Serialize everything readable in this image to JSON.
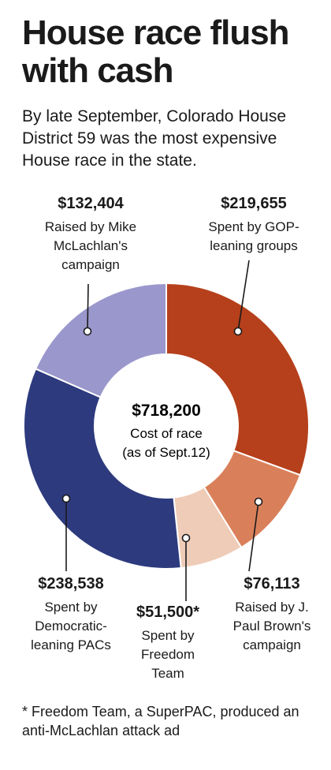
{
  "header": {
    "title": "House race flush with cash",
    "subtitle": "By late September, Colorado House District 59 was the most expensive House race in the state."
  },
  "chart_data": {
    "type": "donut",
    "title": "House race flush with cash",
    "center": {
      "value": "$718,200",
      "line1": "Cost of race",
      "line2": "(as of Sept.12)"
    },
    "slices": [
      {
        "id": "gop",
        "value": 219655,
        "amount_label": "$219,655",
        "description": "Spent by GOP-\nleaning groups",
        "color": "#b5401b"
      },
      {
        "id": "brown",
        "value": 76113,
        "amount_label": "$76,113",
        "description": "Raised by J.\nPaul Brown's\ncampaign",
        "color": "#d9805a"
      },
      {
        "id": "freedom",
        "value": 51500,
        "amount_label": "$51,500*",
        "description": "Spent by\nFreedom\nTeam",
        "color": "#efccb8"
      },
      {
        "id": "dem",
        "value": 238538,
        "amount_label": "$238,538",
        "description": "Spent by\nDemocratic-\nleaning PACs",
        "color": "#2d3a7e"
      },
      {
        "id": "mclachlan",
        "value": 132404,
        "amount_label": "$132,404",
        "description": "Raised by Mike\nMcLachlan's\ncampaign",
        "color": "#9a97cc"
      }
    ]
  },
  "footnote": "* Freedom Team, a SuperPAC, produced an anti-McLachlan attack ad"
}
